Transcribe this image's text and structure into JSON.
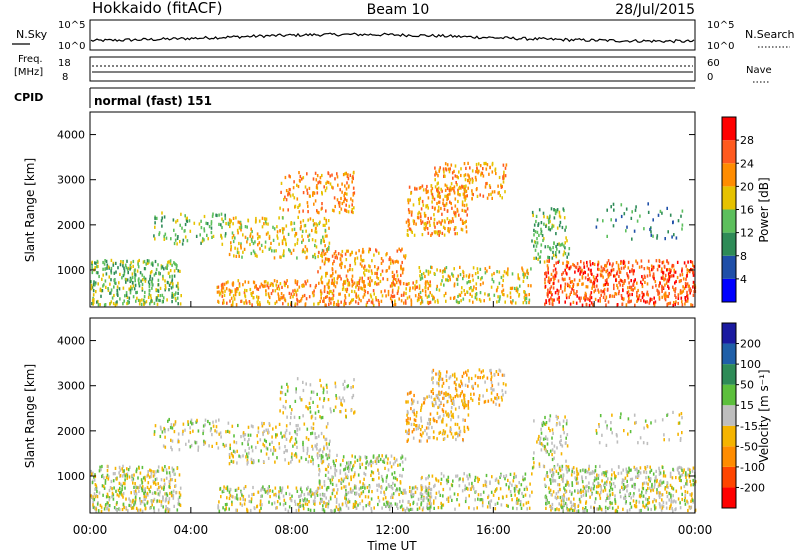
{
  "header": {
    "station": "Hokkaido (fitACF)",
    "beam": "Beam 10",
    "date": "28/Jul/2015"
  },
  "noise_panel": {
    "left_label": "N.Sky",
    "right_label": "N.Search",
    "ticks": [
      "10^5",
      "10^0"
    ]
  },
  "freq_panel": {
    "left_label_top": "Freq.",
    "left_label_bottom": "[MHz]",
    "left_ticks": [
      "18",
      "8"
    ],
    "right_label": "Nave",
    "right_ticks": [
      "60",
      "0"
    ]
  },
  "cpid_panel": {
    "label": "CPID",
    "value": "normal (fast) 151"
  },
  "chart_data": [
    {
      "type": "heatmap",
      "parameter": "power",
      "ylabel": "Slant Range [km]",
      "ylim": [
        180,
        4500
      ],
      "yticks": [
        "4000",
        "3000",
        "2000",
        "1000"
      ],
      "colorbar": {
        "label": "Power [dB]",
        "ticks": [
          "28",
          "24",
          "20",
          "16",
          "12",
          "8",
          "4"
        ],
        "colors": [
          "#0000ff",
          "#1f4fa8",
          "#2e8b57",
          "#5cbf5c",
          "#e6c200",
          "#ff8c00",
          "#ff5a1f",
          "#ff0000"
        ]
      },
      "scatter_regions": [
        {
          "t0": 0.0,
          "t1": 3.6,
          "r0": 250,
          "r1": 1250,
          "density": 0.75,
          "level": 3
        },
        {
          "t0": 2.5,
          "t1": 5.5,
          "r0": 1600,
          "r1": 2300,
          "density": 0.35,
          "level": 3
        },
        {
          "t0": 5.5,
          "t1": 9.5,
          "r0": 1300,
          "r1": 2200,
          "density": 0.5,
          "level": 4
        },
        {
          "t0": 7.5,
          "t1": 10.5,
          "r0": 2300,
          "r1": 3200,
          "density": 0.45,
          "level": 5
        },
        {
          "t0": 9.0,
          "t1": 12.5,
          "r0": 700,
          "r1": 1500,
          "density": 0.55,
          "level": 5
        },
        {
          "t0": 5.0,
          "t1": 13.5,
          "r0": 250,
          "r1": 800,
          "density": 0.7,
          "level": 5
        },
        {
          "t0": 12.5,
          "t1": 15.0,
          "r0": 1800,
          "r1": 2900,
          "density": 0.6,
          "level": 5
        },
        {
          "t0": 13.5,
          "t1": 16.5,
          "r0": 2600,
          "r1": 3400,
          "density": 0.55,
          "level": 5
        },
        {
          "t0": 13.0,
          "t1": 17.5,
          "r0": 300,
          "r1": 1100,
          "density": 0.5,
          "level": 4
        },
        {
          "t0": 17.5,
          "t1": 19.0,
          "r0": 1200,
          "r1": 2400,
          "density": 0.5,
          "level": 3
        },
        {
          "t0": 18.0,
          "t1": 24.0,
          "r0": 250,
          "r1": 1250,
          "density": 0.8,
          "level": 6
        },
        {
          "t0": 20.0,
          "t1": 23.5,
          "r0": 1700,
          "r1": 2500,
          "density": 0.15,
          "level": 2
        }
      ]
    },
    {
      "type": "heatmap",
      "parameter": "velocity",
      "ylabel": "Slant Range [km]",
      "ylim": [
        180,
        4500
      ],
      "yticks": [
        "4000",
        "3000",
        "2000",
        "1000"
      ],
      "colorbar": {
        "label": "Velocity [m s⁻¹]",
        "ticks": [
          "200",
          "100",
          "50",
          "15",
          "-15",
          "-50",
          "-100",
          "-200"
        ],
        "colors": [
          "#ff0000",
          "#ff4500",
          "#ff8c00",
          "#f5b400",
          "#bebebe",
          "#5cbf3c",
          "#2e8b57",
          "#1f5fa8",
          "#1a1aa0"
        ]
      },
      "scatter_regions": [
        {
          "t0": 0.0,
          "t1": 3.6,
          "r0": 250,
          "r1": 1250,
          "density": 0.8,
          "level": 4
        },
        {
          "t0": 2.5,
          "t1": 5.5,
          "r0": 1600,
          "r1": 2300,
          "density": 0.35,
          "level": 4
        },
        {
          "t0": 5.5,
          "t1": 9.5,
          "r0": 1300,
          "r1": 2200,
          "density": 0.45,
          "level": 4
        },
        {
          "t0": 7.5,
          "t1": 10.5,
          "r0": 2300,
          "r1": 3200,
          "density": 0.3,
          "level": 4
        },
        {
          "t0": 9.0,
          "t1": 12.5,
          "r0": 700,
          "r1": 1500,
          "density": 0.55,
          "level": 4
        },
        {
          "t0": 5.0,
          "t1": 13.5,
          "r0": 250,
          "r1": 800,
          "density": 0.7,
          "level": 4
        },
        {
          "t0": 12.5,
          "t1": 15.0,
          "r0": 1800,
          "r1": 2900,
          "density": 0.55,
          "level": 3
        },
        {
          "t0": 13.5,
          "t1": 16.5,
          "r0": 2600,
          "r1": 3400,
          "density": 0.5,
          "level": 3
        },
        {
          "t0": 13.0,
          "t1": 17.5,
          "r0": 300,
          "r1": 1100,
          "density": 0.5,
          "level": 4
        },
        {
          "t0": 17.5,
          "t1": 19.0,
          "r0": 1200,
          "r1": 2400,
          "density": 0.4,
          "level": 4
        },
        {
          "t0": 18.0,
          "t1": 24.0,
          "r0": 250,
          "r1": 1250,
          "density": 0.8,
          "level": 4
        },
        {
          "t0": 20.0,
          "t1": 23.5,
          "r0": 1700,
          "r1": 2500,
          "density": 0.15,
          "level": 4
        }
      ]
    }
  ],
  "time_axis": {
    "xlabel": "Time UT",
    "ticks": [
      "00:00",
      "04:00",
      "08:00",
      "12:00",
      "16:00",
      "20:00",
      "00:00"
    ]
  }
}
